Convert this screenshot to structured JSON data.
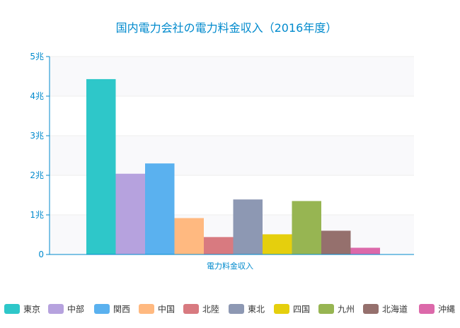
{
  "chart_data": {
    "type": "bar",
    "title": "国内電力会社の電力料金収入（2016年度）",
    "xlabel": "電力料金収入",
    "ylabel": "",
    "ylim": [
      0,
      5
    ],
    "yticks": [
      "0",
      "1兆",
      "2兆",
      "3兆",
      "4兆",
      "5兆"
    ],
    "grid": true,
    "legend_position": "bottom",
    "series": [
      {
        "name": "東京",
        "value": 4.43,
        "color": "#2ec7c9"
      },
      {
        "name": "中部",
        "value": 2.04,
        "color": "#b6a2de"
      },
      {
        "name": "関西",
        "value": 2.3,
        "color": "#5ab1ef"
      },
      {
        "name": "中国",
        "value": 0.92,
        "color": "#ffb980"
      },
      {
        "name": "北陸",
        "value": 0.44,
        "color": "#d87a80"
      },
      {
        "name": "東北",
        "value": 1.39,
        "color": "#8d98b3"
      },
      {
        "name": "四国",
        "value": 0.51,
        "color": "#e5cf0d"
      },
      {
        "name": "九州",
        "value": 1.35,
        "color": "#97b552"
      },
      {
        "name": "北海道",
        "value": 0.6,
        "color": "#95706d"
      },
      {
        "name": "沖縄",
        "value": 0.17,
        "color": "#dc69aa"
      }
    ]
  },
  "colors": {
    "title": "#008acd",
    "axis": "#008acd",
    "grid": "#eeeeee",
    "plot_band": "#f9f9fb",
    "legend_text": "#333333"
  }
}
